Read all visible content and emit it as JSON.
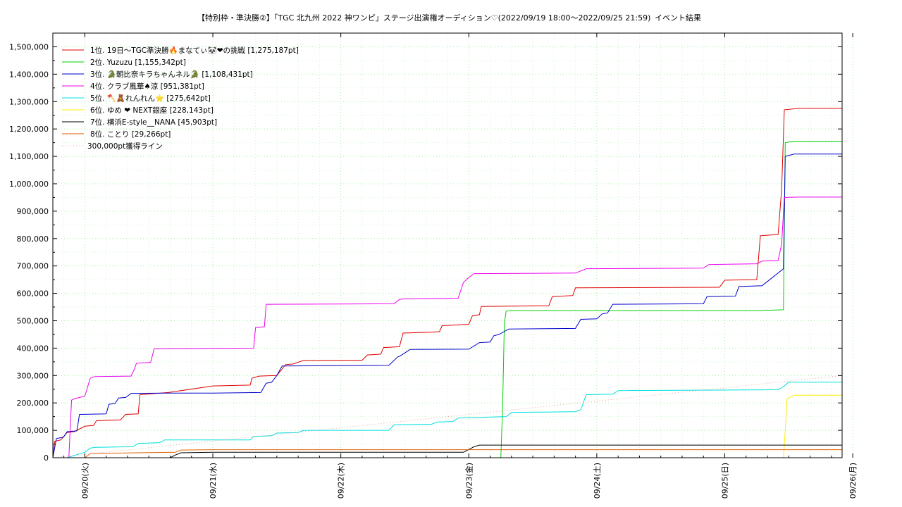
{
  "chart_data": {
    "type": "line",
    "title": "【特別枠・準決勝②】「TGC 北九州 2022 神ワンピ」ステージ出演権オーディション♡(2022/09/19 18:00〜2022/09/25 21:59)",
    "subtitle": "イベント結果",
    "xlabel": "",
    "ylabel": "",
    "x_unit": "date",
    "xlim": [
      "2022-09-19T18:00",
      "2022-09-25T22:00"
    ],
    "ylim": [
      0,
      1550000
    ],
    "grid": true,
    "legend_position": "top-left",
    "x_ticks": [
      {
        "t": "2022-09-20T00:00",
        "label": "09/20(火)"
      },
      {
        "t": "2022-09-21T00:00",
        "label": "09/21(水)"
      },
      {
        "t": "2022-09-22T00:00",
        "label": "09/22(木)"
      },
      {
        "t": "2022-09-23T00:00",
        "label": "09/23(金)"
      },
      {
        "t": "2022-09-24T00:00",
        "label": "09/24(土)"
      },
      {
        "t": "2022-09-25T00:00",
        "label": "09/25(日)"
      },
      {
        "t": "2022-09-26T00:00",
        "label": "09/26(月)"
      }
    ],
    "y_ticks": [
      {
        "v": 0,
        "label": "0"
      },
      {
        "v": 100000,
        "label": "100,000"
      },
      {
        "v": 200000,
        "label": "200,000"
      },
      {
        "v": 300000,
        "label": "300,000"
      },
      {
        "v": 400000,
        "label": "400,000"
      },
      {
        "v": 500000,
        "label": "500,000"
      },
      {
        "v": 600000,
        "label": "600,000"
      },
      {
        "v": 700000,
        "label": "700,000"
      },
      {
        "v": 800000,
        "label": "800,000"
      },
      {
        "v": 900000,
        "label": "900,000"
      },
      {
        "v": 1000000,
        "label": "1,000,000"
      },
      {
        "v": 1100000,
        "label": "1,100,000"
      },
      {
        "v": 1200000,
        "label": "1,200,000"
      },
      {
        "v": 1300000,
        "label": "1,300,000"
      },
      {
        "v": 1400000,
        "label": "1,400,000"
      },
      {
        "v": 1500000,
        "label": "1,500,000"
      }
    ],
    "series": [
      {
        "name": "1位. 19日〜TGC準決勝🔥まなてぃ🐼❤の挑戦 [1,275,187pt]",
        "color": "#e00000",
        "points": [
          [
            "2022-09-19T18:00",
            0
          ],
          [
            "2022-09-19T18:20",
            60000
          ],
          [
            "2022-09-19T19:30",
            65000
          ],
          [
            "2022-09-19T20:40",
            92000
          ],
          [
            "2022-09-19T22:00",
            95000
          ],
          [
            "2022-09-20T00:00",
            115000
          ],
          [
            "2022-09-20T01:40",
            118000
          ],
          [
            "2022-09-20T02:10",
            135000
          ],
          [
            "2022-09-20T06:40",
            138000
          ],
          [
            "2022-09-20T07:40",
            158000
          ],
          [
            "2022-09-20T10:00",
            160000
          ],
          [
            "2022-09-20T10:20",
            230000
          ],
          [
            "2022-09-20T15:40",
            238000
          ],
          [
            "2022-09-21T00:00",
            262000
          ],
          [
            "2022-09-21T07:00",
            265000
          ],
          [
            "2022-09-21T07:20",
            290000
          ],
          [
            "2022-09-21T08:40",
            298000
          ],
          [
            "2022-09-21T12:00",
            300000
          ],
          [
            "2022-09-21T13:40",
            340000
          ],
          [
            "2022-09-21T15:00",
            342000
          ],
          [
            "2022-09-21T17:00",
            355000
          ],
          [
            "2022-09-22T04:00",
            356000
          ],
          [
            "2022-09-22T05:00",
            375000
          ],
          [
            "2022-09-22T07:30",
            378000
          ],
          [
            "2022-09-22T08:00",
            402000
          ],
          [
            "2022-09-22T11:00",
            405000
          ],
          [
            "2022-09-22T11:40",
            455000
          ],
          [
            "2022-09-22T17:00",
            458000
          ],
          [
            "2022-09-22T18:30",
            460000
          ],
          [
            "2022-09-22T19:00",
            482000
          ],
          [
            "2022-09-23T00:00",
            487000
          ],
          [
            "2022-09-23T00:40",
            518000
          ],
          [
            "2022-09-23T02:00",
            522000
          ],
          [
            "2022-09-23T02:20",
            552000
          ],
          [
            "2022-09-23T15:00",
            555000
          ],
          [
            "2022-09-23T15:40",
            588000
          ],
          [
            "2022-09-23T19:30",
            592000
          ],
          [
            "2022-09-23T20:00",
            620000
          ],
          [
            "2022-09-24T23:00",
            622000
          ],
          [
            "2022-09-25T00:00",
            648000
          ],
          [
            "2022-09-25T06:00",
            650000
          ],
          [
            "2022-09-25T06:40",
            810000
          ],
          [
            "2022-09-25T10:00",
            815000
          ],
          [
            "2022-09-25T10:40",
            980000
          ],
          [
            "2022-09-25T11:10",
            1270000
          ],
          [
            "2022-09-25T14:00",
            1275187
          ],
          [
            "2022-09-25T22:00",
            1275187
          ]
        ]
      },
      {
        "name": "2位. Yuzuzu [1,155,342pt]",
        "color": "#00d000",
        "points": [
          [
            "2022-09-19T18:00",
            0
          ],
          [
            "2022-09-23T06:00",
            0
          ],
          [
            "2022-09-23T06:20",
            180000
          ],
          [
            "2022-09-23T06:40",
            490000
          ],
          [
            "2022-09-23T07:00",
            535000
          ],
          [
            "2022-09-23T08:00",
            537000
          ],
          [
            "2022-09-25T06:00",
            537000
          ],
          [
            "2022-09-25T11:00",
            540000
          ],
          [
            "2022-09-25T11:20",
            1150000
          ],
          [
            "2022-09-25T13:00",
            1155342
          ],
          [
            "2022-09-25T22:00",
            1155342
          ]
        ]
      },
      {
        "name": "3位. 🐊朝比奈キラちゃんネル🐊 [1,108,431pt]",
        "color": "#0000cc",
        "points": [
          [
            "2022-09-19T18:00",
            0
          ],
          [
            "2022-09-19T18:40",
            70000
          ],
          [
            "2022-09-19T20:00",
            75000
          ],
          [
            "2022-09-19T20:40",
            95000
          ],
          [
            "2022-09-19T22:30",
            98000
          ],
          [
            "2022-09-19T23:00",
            158000
          ],
          [
            "2022-09-20T04:00",
            160000
          ],
          [
            "2022-09-20T04:30",
            195000
          ],
          [
            "2022-09-20T05:40",
            198000
          ],
          [
            "2022-09-20T06:20",
            218000
          ],
          [
            "2022-09-20T07:40",
            220000
          ],
          [
            "2022-09-20T08:40",
            235000
          ],
          [
            "2022-09-20T15:40",
            236000
          ],
          [
            "2022-09-21T00:00",
            236000
          ],
          [
            "2022-09-21T09:00",
            238000
          ],
          [
            "2022-09-21T10:00",
            272000
          ],
          [
            "2022-09-21T11:00",
            275000
          ],
          [
            "2022-09-21T12:00",
            300000
          ],
          [
            "2022-09-21T13:00",
            335000
          ],
          [
            "2022-09-22T09:00",
            337000
          ],
          [
            "2022-09-22T10:40",
            368000
          ],
          [
            "2022-09-22T11:00",
            370000
          ],
          [
            "2022-09-22T13:00",
            395000
          ],
          [
            "2022-09-23T00:00",
            396000
          ],
          [
            "2022-09-23T02:00",
            420000
          ],
          [
            "2022-09-23T04:00",
            422000
          ],
          [
            "2022-09-23T04:40",
            445000
          ],
          [
            "2022-09-23T05:40",
            450000
          ],
          [
            "2022-09-23T07:30",
            470000
          ],
          [
            "2022-09-23T20:00",
            472000
          ],
          [
            "2022-09-23T21:00",
            505000
          ],
          [
            "2022-09-24T00:00",
            507000
          ],
          [
            "2022-09-24T01:00",
            525000
          ],
          [
            "2022-09-24T02:00",
            528000
          ],
          [
            "2022-09-24T03:00",
            560000
          ],
          [
            "2022-09-24T20:00",
            562000
          ],
          [
            "2022-09-24T20:40",
            588000
          ],
          [
            "2022-09-25T02:00",
            590000
          ],
          [
            "2022-09-25T02:40",
            625000
          ],
          [
            "2022-09-25T07:00",
            628000
          ],
          [
            "2022-09-25T11:00",
            690000
          ],
          [
            "2022-09-25T11:20",
            1100000
          ],
          [
            "2022-09-25T13:00",
            1108431
          ],
          [
            "2022-09-25T22:00",
            1108431
          ]
        ]
      },
      {
        "name": "4位. クラブ風華♠涼 [951,381pt]",
        "color": "#ee00ee",
        "points": [
          [
            "2022-09-19T18:00",
            0
          ],
          [
            "2022-09-19T21:00",
            0
          ],
          [
            "2022-09-19T21:30",
            210000
          ],
          [
            "2022-09-19T22:00",
            215000
          ],
          [
            "2022-09-20T00:00",
            225000
          ],
          [
            "2022-09-20T01:00",
            290000
          ],
          [
            "2022-09-20T01:40",
            295000
          ],
          [
            "2022-09-20T02:00",
            296000
          ],
          [
            "2022-09-20T08:40",
            298000
          ],
          [
            "2022-09-20T09:20",
            325000
          ],
          [
            "2022-09-20T09:40",
            345000
          ],
          [
            "2022-09-20T12:20",
            348000
          ],
          [
            "2022-09-20T13:00",
            398000
          ],
          [
            "2022-09-21T07:40",
            400000
          ],
          [
            "2022-09-21T08:00",
            475000
          ],
          [
            "2022-09-21T09:40",
            478000
          ],
          [
            "2022-09-21T10:00",
            560000
          ],
          [
            "2022-09-22T10:00",
            562000
          ],
          [
            "2022-09-22T11:00",
            578000
          ],
          [
            "2022-09-22T12:00",
            580000
          ],
          [
            "2022-09-22T22:00",
            582000
          ],
          [
            "2022-09-22T23:00",
            640000
          ],
          [
            "2022-09-23T00:00",
            658000
          ],
          [
            "2022-09-23T01:00",
            672000
          ],
          [
            "2022-09-23T20:00",
            674000
          ],
          [
            "2022-09-23T22:00",
            690000
          ],
          [
            "2022-09-24T20:00",
            692000
          ],
          [
            "2022-09-24T21:00",
            705000
          ],
          [
            "2022-09-25T06:00",
            708000
          ],
          [
            "2022-09-25T07:00",
            718000
          ],
          [
            "2022-09-25T10:00",
            720000
          ],
          [
            "2022-09-25T10:40",
            780000
          ],
          [
            "2022-09-25T11:10",
            950000
          ],
          [
            "2022-09-25T14:00",
            951381
          ],
          [
            "2022-09-25T22:00",
            951381
          ]
        ]
      },
      {
        "name": "5位. 🪓🧸れんれん⭐ [275,642pt]",
        "color": "#00e0e0",
        "points": [
          [
            "2022-09-19T18:00",
            0
          ],
          [
            "2022-09-19T20:40",
            0
          ],
          [
            "2022-09-19T22:00",
            8000
          ],
          [
            "2022-09-20T00:00",
            20000
          ],
          [
            "2022-09-20T01:00",
            35000
          ],
          [
            "2022-09-20T02:00",
            38000
          ],
          [
            "2022-09-20T09:00",
            40000
          ],
          [
            "2022-09-20T10:00",
            52000
          ],
          [
            "2022-09-20T14:00",
            55000
          ],
          [
            "2022-09-20T15:00",
            65000
          ],
          [
            "2022-09-21T07:00",
            65000
          ],
          [
            "2022-09-21T07:40",
            78000
          ],
          [
            "2022-09-21T11:00",
            80000
          ],
          [
            "2022-09-21T12:00",
            90000
          ],
          [
            "2022-09-21T16:00",
            92000
          ],
          [
            "2022-09-21T17:00",
            100000
          ],
          [
            "2022-09-22T09:00",
            100000
          ],
          [
            "2022-09-22T10:00",
            120000
          ],
          [
            "2022-09-22T17:00",
            122000
          ],
          [
            "2022-09-22T18:00",
            130000
          ],
          [
            "2022-09-22T21:00",
            132000
          ],
          [
            "2022-09-22T22:00",
            145000
          ],
          [
            "2022-09-23T07:00",
            150000
          ],
          [
            "2022-09-23T08:00",
            165000
          ],
          [
            "2022-09-23T20:00",
            168000
          ],
          [
            "2022-09-23T21:00",
            175000
          ],
          [
            "2022-09-23T22:00",
            230000
          ],
          [
            "2022-09-24T03:00",
            232000
          ],
          [
            "2022-09-24T04:00",
            245000
          ],
          [
            "2022-09-25T10:00",
            248000
          ],
          [
            "2022-09-25T11:00",
            260000
          ],
          [
            "2022-09-25T12:00",
            275642
          ],
          [
            "2022-09-25T22:00",
            275642
          ]
        ]
      },
      {
        "name": "6位. ゆめ ❤ NEXT銀座 [228,143pt]",
        "color": "#ffee00",
        "points": [
          [
            "2022-09-19T18:00",
            0
          ],
          [
            "2022-09-25T11:00",
            0
          ],
          [
            "2022-09-25T11:20",
            100000
          ],
          [
            "2022-09-25T11:40",
            215000
          ],
          [
            "2022-09-25T13:00",
            228143
          ],
          [
            "2022-09-25T22:00",
            228143
          ]
        ]
      },
      {
        "name": "7位. 横浜E-style__NANA [45,903pt]",
        "color": "#000000",
        "points": [
          [
            "2022-09-19T18:00",
            0
          ],
          [
            "2022-09-20T16:00",
            0
          ],
          [
            "2022-09-20T17:00",
            10000
          ],
          [
            "2022-09-20T18:00",
            18000
          ],
          [
            "2022-09-21T00:00",
            20000
          ],
          [
            "2022-09-22T23:00",
            20000
          ],
          [
            "2022-09-23T01:00",
            40000
          ],
          [
            "2022-09-23T02:00",
            45903
          ],
          [
            "2022-09-25T22:00",
            45903
          ]
        ]
      },
      {
        "name": "8位. ことり [29,266pt]",
        "color": "#e06000",
        "points": [
          [
            "2022-09-19T18:00",
            0
          ],
          [
            "2022-09-20T00:00",
            0
          ],
          [
            "2022-09-20T01:00",
            15000
          ],
          [
            "2022-09-20T03:00",
            16000
          ],
          [
            "2022-09-20T17:00",
            20000
          ],
          [
            "2022-09-20T18:00",
            28000
          ],
          [
            "2022-09-21T00:00",
            29266
          ],
          [
            "2022-09-25T22:00",
            29266
          ]
        ]
      },
      {
        "name": "300,000pt獲得ライン",
        "color": "#f0a0a0",
        "dotted": true,
        "points": [
          [
            "2022-09-19T18:00",
            0
          ],
          [
            "2022-09-25T22:00",
            300000
          ]
        ]
      }
    ]
  }
}
